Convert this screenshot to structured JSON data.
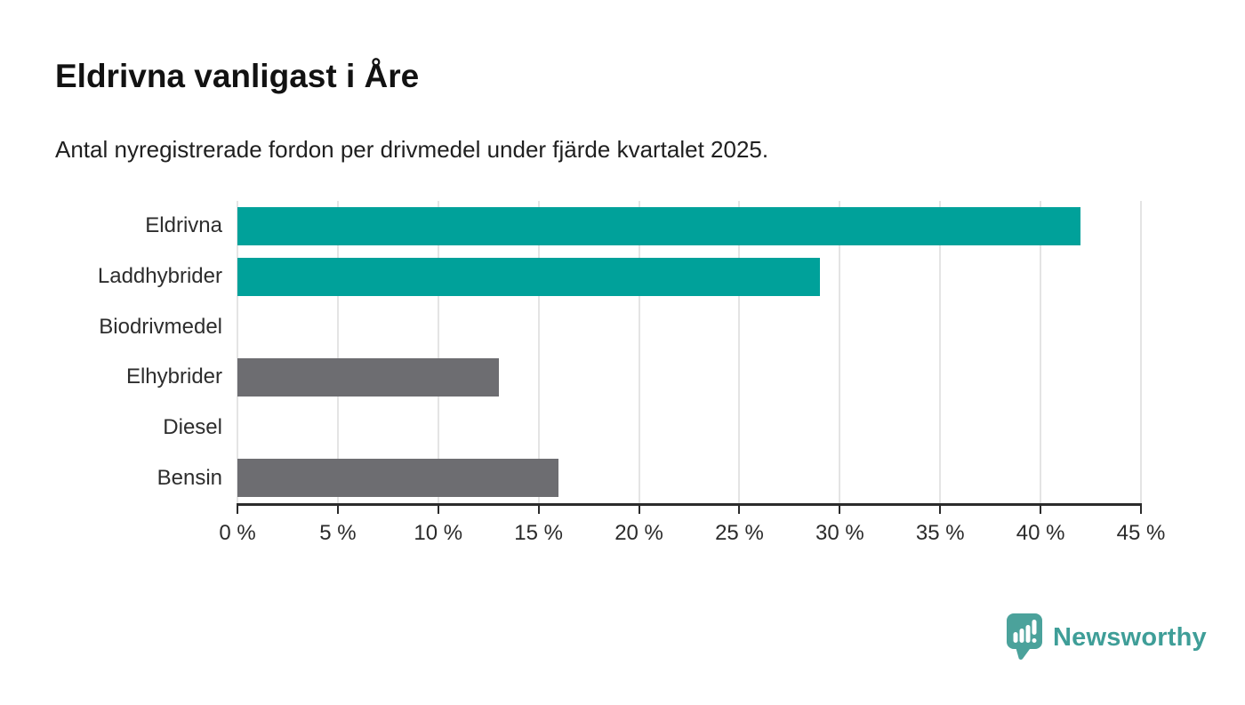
{
  "header": {
    "title": "Eldrivna vanligast i Åre",
    "subtitle": "Antal nyregistrerade fordon per drivmedel under fjärde kvartalet 2025."
  },
  "chart_data": {
    "type": "bar",
    "orientation": "horizontal",
    "title": "Eldrivna vanligast i Åre",
    "subtitle": "Antal nyregistrerade fordon per drivmedel under fjärde kvartalet 2025.",
    "categories": [
      "Eldrivna",
      "Laddhybrider",
      "Biodrivmedel",
      "Elhybrider",
      "Diesel",
      "Bensin"
    ],
    "values": [
      42,
      29,
      0,
      13,
      0,
      16
    ],
    "unit": "%",
    "xlabel": "",
    "ylabel": "",
    "xlim": [
      0,
      45
    ],
    "x_tick_step": 5,
    "x_tick_labels": [
      "0 %",
      "5 %",
      "10 %",
      "15 %",
      "20 %",
      "25 %",
      "30 %",
      "35 %",
      "40 %",
      "45 %"
    ],
    "bar_colors": [
      "#00a19a",
      "#00a19a",
      "#00a19a",
      "#6d6d71",
      "#6d6d71",
      "#6d6d71"
    ],
    "grid": true,
    "legend": "none"
  },
  "branding": {
    "logo_label": "Newsworthy",
    "logo_icon": "newsworthy-speech-bubble-chart-icon",
    "icon_color": "#4ba29b",
    "text_color": "#3f9e98"
  },
  "colors": {
    "bar_electric": "#00a19a",
    "bar_fossil": "#6d6d71",
    "gridline": "#e4e4e4",
    "axis": "#2b2b2b",
    "title_text": "#121212",
    "body_text": "#1f1f1f"
  }
}
